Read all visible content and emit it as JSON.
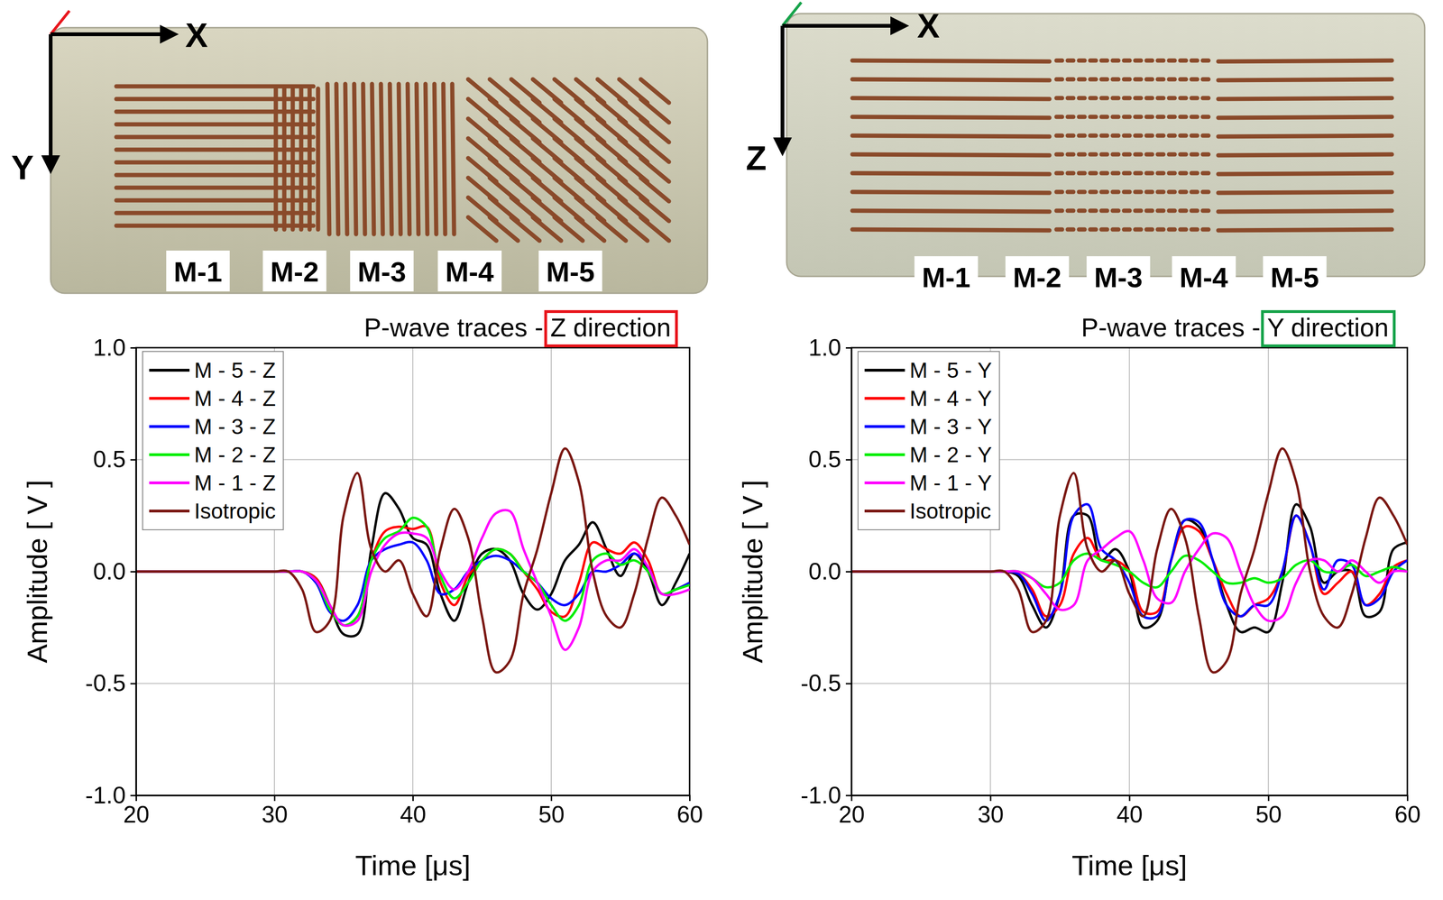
{
  "photos": [
    {
      "axis_labels": [
        "X",
        "Y"
      ],
      "labels": [
        "M-1",
        "M-2",
        "M-3",
        "M-4",
        "M-5"
      ]
    },
    {
      "axis_labels": [
        "X",
        "Z"
      ],
      "labels": [
        "M-1",
        "M-2",
        "M-3",
        "M-4",
        "M-5"
      ]
    }
  ],
  "chart_data": [
    {
      "type": "line",
      "title": "P-wave traces - Z direction",
      "x_label": "Time [μs]",
      "y_label": "Amplitude [ V ]",
      "x": [
        20,
        21,
        22,
        23,
        24,
        25,
        26,
        27,
        28,
        29,
        30,
        31,
        32,
        33,
        34,
        35,
        36,
        37,
        38,
        39,
        40,
        41,
        42,
        43,
        44,
        45,
        46,
        47,
        48,
        49,
        50,
        51,
        52,
        53,
        54,
        55,
        56,
        57,
        58,
        59,
        60
      ],
      "xlim": [
        20,
        60
      ],
      "xticks": [
        20,
        30,
        40,
        50,
        60
      ],
      "ylim": [
        -1,
        1
      ],
      "yticks": [
        {
          "value": -1,
          "label": "-1.0"
        },
        -0.5,
        {
          "value": 0,
          "label": "0.0"
        },
        0.5,
        {
          "value": 1,
          "label": "1.0"
        }
      ],
      "grid": true,
      "legend": "upper left",
      "series": [
        {
          "name": "M - 5 - Z",
          "color": "#000000",
          "values": [
            0,
            0,
            0,
            0,
            0,
            0,
            0,
            0,
            0,
            0,
            0,
            0,
            0,
            -0.03,
            -0.15,
            -0.28,
            -0.28,
            0.1,
            0.35,
            0.28,
            0.15,
            0.12,
            -0.1,
            -0.22,
            -0.05,
            0.08,
            0.1,
            0.05,
            -0.1,
            -0.17,
            -0.1,
            0.05,
            0.12,
            0.22,
            0.1,
            -0.02,
            0.08,
            0,
            -0.15,
            -0.05,
            0.08
          ]
        },
        {
          "name": "M - 4 - Z",
          "color": "#ff0000",
          "values": [
            0,
            0,
            0,
            0,
            0,
            0,
            0,
            0,
            0,
            0,
            0,
            0,
            0,
            -0.03,
            -0.15,
            -0.24,
            -0.2,
            0.05,
            0.18,
            0.2,
            0.19,
            0.2,
            -0.05,
            -0.15,
            -0.02,
            0.05,
            0.1,
            0.08,
            0,
            -0.08,
            -0.18,
            -0.2,
            -0.05,
            0.13,
            0.1,
            0.08,
            0.13,
            0.05,
            -0.1,
            -0.08,
            -0.05
          ]
        },
        {
          "name": "M - 3 - Z",
          "color": "#0000ff",
          "values": [
            0,
            0,
            0,
            0,
            0,
            0,
            0,
            0,
            0,
            0,
            0,
            0,
            0,
            -0.05,
            -0.18,
            -0.22,
            -0.15,
            0.05,
            0.1,
            0.12,
            0.13,
            0.05,
            -0.1,
            -0.08,
            0,
            0.05,
            0.07,
            0.05,
            0,
            -0.05,
            -0.12,
            -0.15,
            -0.1,
            0,
            0,
            0.03,
            0.08,
            0.02,
            -0.1,
            -0.08,
            -0.05
          ]
        },
        {
          "name": "M - 2 - Z",
          "color": "#00ee00",
          "values": [
            0,
            0,
            0,
            0,
            0,
            0,
            0,
            0,
            0,
            0,
            0,
            0,
            0,
            -0.04,
            -0.17,
            -0.24,
            -0.2,
            0.05,
            0.15,
            0.18,
            0.24,
            0.2,
            -0.02,
            -0.12,
            -0.05,
            0.05,
            0.1,
            0.08,
            0,
            -0.05,
            -0.15,
            -0.22,
            -0.15,
            0.05,
            0.08,
            0.03,
            0.05,
            0,
            -0.1,
            -0.08,
            -0.06
          ]
        },
        {
          "name": "M - 1 - Z",
          "color": "#ff00ff",
          "values": [
            0,
            0,
            0,
            0,
            0,
            0,
            0,
            0,
            0,
            0,
            0,
            0,
            0,
            -0.04,
            -0.15,
            -0.24,
            -0.22,
            0,
            0.12,
            0.17,
            0.17,
            0.15,
            0,
            -0.08,
            0,
            0.15,
            0.26,
            0.27,
            0.1,
            -0.05,
            -0.2,
            -0.35,
            -0.25,
            0,
            0.05,
            0.05,
            0.1,
            0.02,
            -0.1,
            -0.1,
            -0.08
          ]
        },
        {
          "name": "Isotropic",
          "color": "#7a1712",
          "values": [
            0,
            0,
            0,
            0,
            0,
            0,
            0,
            0,
            0,
            0,
            0,
            0,
            -0.08,
            -0.27,
            -0.22,
            0.25,
            0.44,
            0.1,
            0,
            0.05,
            -0.1,
            -0.2,
            0.1,
            0.28,
            0.15,
            -0.2,
            -0.45,
            -0.4,
            -0.1,
            0.1,
            0.35,
            0.55,
            0.4,
            0,
            -0.2,
            -0.25,
            -0.1,
            0.15,
            0.33,
            0.25,
            0.12
          ]
        }
      ]
    },
    {
      "type": "line",
      "title": "P-wave traces - Y direction",
      "x_label": "Time [μs]",
      "y_label": "Amplitude [ V ]",
      "x": [
        20,
        21,
        22,
        23,
        24,
        25,
        26,
        27,
        28,
        29,
        30,
        31,
        32,
        33,
        34,
        35,
        36,
        37,
        38,
        39,
        40,
        41,
        42,
        43,
        44,
        45,
        46,
        47,
        48,
        49,
        50,
        51,
        52,
        53,
        54,
        55,
        56,
        57,
        58,
        59,
        60
      ],
      "xlim": [
        20,
        60
      ],
      "xticks": [
        20,
        30,
        40,
        50,
        60
      ],
      "ylim": [
        -1,
        1
      ],
      "yticks": [
        {
          "value": -1,
          "label": "-1.0"
        },
        -0.5,
        {
          "value": 0,
          "label": "0.0"
        },
        0.5,
        {
          "value": 1,
          "label": "1.0"
        }
      ],
      "grid": true,
      "legend": "upper left",
      "series": [
        {
          "name": "M - 5 - Y",
          "color": "#000000",
          "values": [
            0,
            0,
            0,
            0,
            0,
            0,
            0,
            0,
            0,
            0,
            0,
            0,
            -0.02,
            -0.15,
            -0.25,
            -0.1,
            0.25,
            0.25,
            0.05,
            0.1,
            0,
            -0.25,
            -0.22,
            0.05,
            0.23,
            0.2,
            0.05,
            -0.15,
            -0.27,
            -0.25,
            -0.27,
            -0.05,
            0.3,
            0.2,
            -0.05,
            0,
            0,
            -0.2,
            -0.18,
            0.1,
            0.13
          ]
        },
        {
          "name": "M - 4 - Y",
          "color": "#ff0000",
          "values": [
            0,
            0,
            0,
            0,
            0,
            0,
            0,
            0,
            0,
            0,
            0,
            0,
            -0.01,
            -0.08,
            -0.2,
            -0.15,
            0.08,
            0.15,
            0.05,
            0.05,
            0,
            -0.18,
            -0.18,
            0.05,
            0.2,
            0.18,
            0.05,
            -0.1,
            -0.2,
            -0.15,
            -0.12,
            0,
            0.25,
            0.12,
            -0.1,
            -0.05,
            0,
            -0.15,
            -0.1,
            0.02,
            0.05
          ]
        },
        {
          "name": "M - 3 - Y",
          "color": "#0000ff",
          "values": [
            0,
            0,
            0,
            0,
            0,
            0,
            0,
            0,
            0,
            0,
            0,
            0,
            -0.01,
            -0.1,
            -0.22,
            -0.1,
            0.25,
            0.3,
            0.1,
            0.05,
            -0.05,
            -0.2,
            -0.2,
            0.05,
            0.23,
            0.22,
            0.05,
            -0.15,
            -0.2,
            -0.15,
            -0.15,
            0,
            0.25,
            0.12,
            -0.08,
            0.05,
            0.03,
            -0.15,
            -0.12,
            0,
            0.05
          ]
        },
        {
          "name": "M - 2 - Y",
          "color": "#00ee00",
          "values": [
            0,
            0,
            0,
            0,
            0,
            0,
            0,
            0,
            0,
            0,
            0,
            0,
            0,
            -0.03,
            -0.07,
            -0.05,
            0.05,
            0.08,
            0.05,
            0.03,
            0,
            -0.05,
            -0.07,
            0,
            0.07,
            0.05,
            0,
            -0.05,
            -0.05,
            -0.03,
            -0.05,
            -0.03,
            0.03,
            0.05,
            0,
            0,
            0.03,
            -0.02,
            0,
            0.02,
            0
          ]
        },
        {
          "name": "M - 1 - Y",
          "color": "#ff00ff",
          "values": [
            0,
            0,
            0,
            0,
            0,
            0,
            0,
            0,
            0,
            0,
            0,
            0,
            0,
            -0.03,
            -0.1,
            -0.17,
            -0.15,
            0.05,
            0.1,
            0.15,
            0.18,
            0.05,
            -0.12,
            -0.14,
            0,
            0.1,
            0.17,
            0.15,
            0,
            -0.15,
            -0.22,
            -0.2,
            -0.05,
            0.05,
            0.05,
            0,
            0.05,
            0,
            -0.05,
            0,
            0
          ]
        },
        {
          "name": "Isotropic",
          "color": "#7a1712",
          "values": [
            0,
            0,
            0,
            0,
            0,
            0,
            0,
            0,
            0,
            0,
            0,
            0,
            -0.08,
            -0.27,
            -0.22,
            0.25,
            0.44,
            0.1,
            0,
            0.05,
            -0.1,
            -0.2,
            0.1,
            0.28,
            0.15,
            -0.2,
            -0.45,
            -0.4,
            -0.1,
            0.1,
            0.35,
            0.55,
            0.4,
            0,
            -0.2,
            -0.25,
            -0.1,
            0.15,
            0.33,
            0.25,
            0.12
          ]
        }
      ]
    }
  ]
}
